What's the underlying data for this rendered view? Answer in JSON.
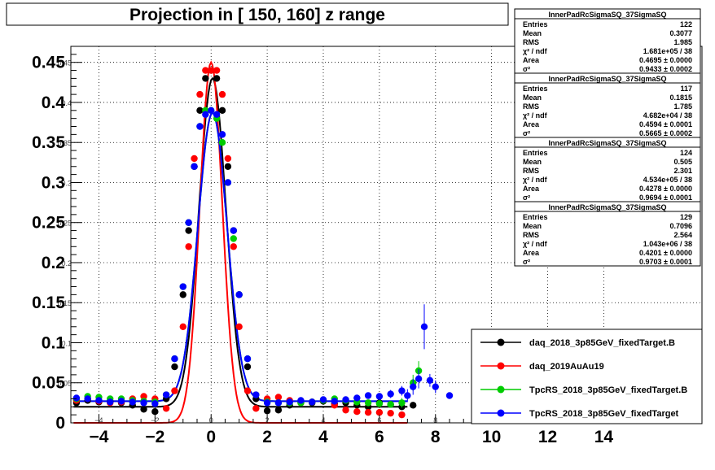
{
  "chart_data": {
    "type": "scatter",
    "title": "Projection in [ 150, 160] z range",
    "xlabel": "",
    "ylabel": "",
    "xlim": [
      -5,
      17.5
    ],
    "ylim": [
      0,
      0.47
    ],
    "grid": true,
    "x_ticks": [
      -4,
      -2,
      0,
      2,
      4,
      6,
      8,
      10,
      12,
      14
    ],
    "y_ticks": [
      0,
      0.05,
      0.1,
      0.15,
      0.2,
      0.25,
      0.3,
      0.35,
      0.4,
      0.45
    ],
    "x_tick_labels": [
      "−4",
      "−2",
      "0",
      "2",
      "4",
      "6",
      "8",
      "10",
      "12",
      "14"
    ],
    "y_tick_labels": [
      "0",
      "0.05",
      "0.1",
      "0.15",
      "0.2",
      "0.25",
      "0.3",
      "0.35",
      "0.4",
      "0.45"
    ],
    "legend_position": "bottom-right",
    "series": [
      {
        "name": "daq_2018_3p85GeV_fixedTarget.B",
        "color": "#000000",
        "x": [
          -4.8,
          -4.4,
          -4.0,
          -3.6,
          -3.2,
          -2.8,
          -2.4,
          -2.0,
          -1.6,
          -1.3,
          -1.0,
          -0.8,
          -0.6,
          -0.4,
          -0.2,
          0.0,
          0.2,
          0.4,
          0.6,
          0.8,
          1.0,
          1.3,
          1.6,
          2.0,
          2.4,
          2.8,
          3.2,
          3.6,
          4.0,
          4.4,
          4.8,
          5.2,
          5.6,
          6.0,
          6.4,
          6.8,
          7.2
        ],
        "y": [
          0.025,
          0.028,
          0.026,
          0.027,
          0.025,
          0.022,
          0.017,
          0.014,
          0.03,
          0.07,
          0.16,
          0.24,
          0.32,
          0.39,
          0.43,
          0.44,
          0.43,
          0.39,
          0.32,
          0.24,
          0.16,
          0.07,
          0.03,
          0.015,
          0.016,
          0.022,
          0.025,
          0.025,
          0.027,
          0.024,
          0.025,
          0.022,
          0.02,
          0.025,
          0.023,
          0.02,
          0.022
        ],
        "errors": []
      },
      {
        "name": "daq_2019AuAu19",
        "color": "#ff0000",
        "x": [
          -4.8,
          -4.4,
          -4.0,
          -3.6,
          -3.2,
          -2.8,
          -2.4,
          -2.0,
          -1.6,
          -1.3,
          -1.0,
          -0.8,
          -0.6,
          -0.4,
          -0.2,
          0.0,
          0.2,
          0.4,
          0.6,
          0.8,
          1.0,
          1.3,
          1.6,
          2.0,
          2.4,
          2.8,
          3.2,
          3.6,
          4.0,
          4.4,
          4.8,
          5.2,
          5.6,
          6.0,
          6.4,
          6.8
        ],
        "y": [
          0.028,
          0.03,
          0.027,
          0.025,
          0.026,
          0.03,
          0.033,
          0.03,
          0.018,
          0.04,
          0.12,
          0.22,
          0.33,
          0.41,
          0.44,
          0.44,
          0.44,
          0.41,
          0.33,
          0.22,
          0.12,
          0.04,
          0.018,
          0.03,
          0.032,
          0.028,
          0.025,
          0.026,
          0.028,
          0.022,
          0.016,
          0.014,
          0.013,
          0.013,
          0.012,
          0.01
        ],
        "errors": []
      },
      {
        "name": "TpcRS_2018_3p85GeV_fixedTarget.B",
        "color": "#00cc00",
        "x": [
          -4.8,
          -4.4,
          -4.0,
          -3.6,
          -3.2,
          -2.8,
          -2.4,
          -2.0,
          -1.6,
          -1.3,
          -1.0,
          -0.8,
          -0.6,
          -0.4,
          -0.2,
          0.0,
          0.2,
          0.4,
          0.6,
          0.8,
          1.0,
          1.3,
          1.6,
          2.0,
          2.4,
          2.8,
          3.2,
          3.6,
          4.0,
          4.4,
          4.8,
          5.2,
          5.6,
          6.0,
          6.4,
          6.8,
          7.2,
          7.4
        ],
        "y": [
          0.03,
          0.033,
          0.032,
          0.03,
          0.03,
          0.028,
          0.027,
          0.026,
          0.035,
          0.08,
          0.17,
          0.25,
          0.32,
          0.37,
          0.39,
          0.39,
          0.38,
          0.35,
          0.3,
          0.23,
          0.16,
          0.08,
          0.035,
          0.026,
          0.025,
          0.025,
          0.025,
          0.026,
          0.028,
          0.03,
          0.028,
          0.026,
          0.025,
          0.024,
          0.023,
          0.025,
          0.05,
          0.065
        ],
        "errors": [
          0.002,
          0.002,
          0.002,
          0.002,
          0.002,
          0.002,
          0.002,
          0.002,
          0.002,
          0.003,
          0.004,
          0.004,
          0.004,
          0.004,
          0.004,
          0.004,
          0.004,
          0.004,
          0.004,
          0.004,
          0.004,
          0.003,
          0.002,
          0.002,
          0.002,
          0.002,
          0.002,
          0.002,
          0.002,
          0.002,
          0.002,
          0.002,
          0.002,
          0.003,
          0.004,
          0.006,
          0.01,
          0.012
        ]
      },
      {
        "name": "TpcRS_2018_3p85GeV_fixedTarget",
        "color": "#0000ff",
        "x": [
          -4.8,
          -4.4,
          -4.0,
          -3.6,
          -3.2,
          -2.8,
          -2.4,
          -2.0,
          -1.6,
          -1.3,
          -1.0,
          -0.8,
          -0.6,
          -0.4,
          -0.2,
          0.0,
          0.2,
          0.4,
          0.6,
          0.8,
          1.0,
          1.3,
          1.6,
          2.0,
          2.4,
          2.8,
          3.2,
          3.6,
          4.0,
          4.4,
          4.8,
          5.2,
          5.6,
          6.0,
          6.4,
          6.8,
          7.0,
          7.2,
          7.4,
          7.6,
          7.8,
          8.0,
          8.5
        ],
        "y": [
          0.031,
          0.03,
          0.028,
          0.026,
          0.027,
          0.026,
          0.025,
          0.024,
          0.035,
          0.08,
          0.17,
          0.25,
          0.32,
          0.37,
          0.385,
          0.39,
          0.385,
          0.36,
          0.3,
          0.24,
          0.16,
          0.08,
          0.035,
          0.025,
          0.025,
          0.026,
          0.028,
          0.026,
          0.029,
          0.027,
          0.029,
          0.031,
          0.034,
          0.033,
          0.036,
          0.04,
          0.034,
          0.045,
          0.055,
          0.12,
          0.053,
          0.045,
          0.034
        ],
        "errors": [
          0.002,
          0.002,
          0.002,
          0.002,
          0.002,
          0.002,
          0.002,
          0.002,
          0.002,
          0.003,
          0.004,
          0.004,
          0.004,
          0.004,
          0.004,
          0.004,
          0.004,
          0.004,
          0.004,
          0.004,
          0.004,
          0.003,
          0.002,
          0.002,
          0.002,
          0.002,
          0.002,
          0.002,
          0.002,
          0.002,
          0.002,
          0.003,
          0.003,
          0.004,
          0.005,
          0.006,
          0.008,
          0.01,
          0.012,
          0.028,
          0.008,
          0.008,
          0.004
        ]
      }
    ],
    "stats_boxes": [
      {
        "title": "InnerPadRcSigmaSQ_37SigmaSQ",
        "rows": [
          {
            "label": "Entries",
            "value": "122"
          },
          {
            "label": "Mean",
            "value": "0.3077"
          },
          {
            "label": "RMS",
            "value": "1.985"
          },
          {
            "label": "χ² / ndf",
            "value": "1.681e+05 / 38"
          },
          {
            "label": "Area",
            "value": "0.4695 ± 0.0000"
          },
          {
            "label": "σ²",
            "value": "0.9433 ± 0.0002"
          }
        ]
      },
      {
        "title": "InnerPadRcSigmaSQ_37SigmaSQ",
        "rows": [
          {
            "label": "Entries",
            "value": "117"
          },
          {
            "label": "Mean",
            "value": "0.1815"
          },
          {
            "label": "RMS",
            "value": "1.785"
          },
          {
            "label": "χ² / ndf",
            "value": "4.682e+04 / 38"
          },
          {
            "label": "Area",
            "value": "0.4594 ± 0.0001"
          },
          {
            "label": "σ²",
            "value": "0.5665 ± 0.0002"
          }
        ]
      },
      {
        "title": "InnerPadRcSigmaSQ_37SigmaSQ",
        "rows": [
          {
            "label": "Entries",
            "value": "124"
          },
          {
            "label": "Mean",
            "value": "0.505"
          },
          {
            "label": "RMS",
            "value": "2.301"
          },
          {
            "label": "χ² / ndf",
            "value": "4.534e+05 / 38"
          },
          {
            "label": "Area",
            "value": "0.4278 ± 0.0000"
          },
          {
            "label": "σ²",
            "value": "0.9694 ± 0.0001"
          }
        ]
      },
      {
        "title": "InnerPadRcSigmaSQ_37SigmaSQ",
        "rows": [
          {
            "label": "Entries",
            "value": "129"
          },
          {
            "label": "Mean",
            "value": "0.7096"
          },
          {
            "label": "RMS",
            "value": "2.564"
          },
          {
            "label": "χ² / ndf",
            "value": "1.043e+06 / 38"
          },
          {
            "label": "Area",
            "value": "0.4201 ± 0.0000"
          },
          {
            "label": "σ²",
            "value": "0.9703 ± 0.0001"
          }
        ]
      }
    ]
  }
}
